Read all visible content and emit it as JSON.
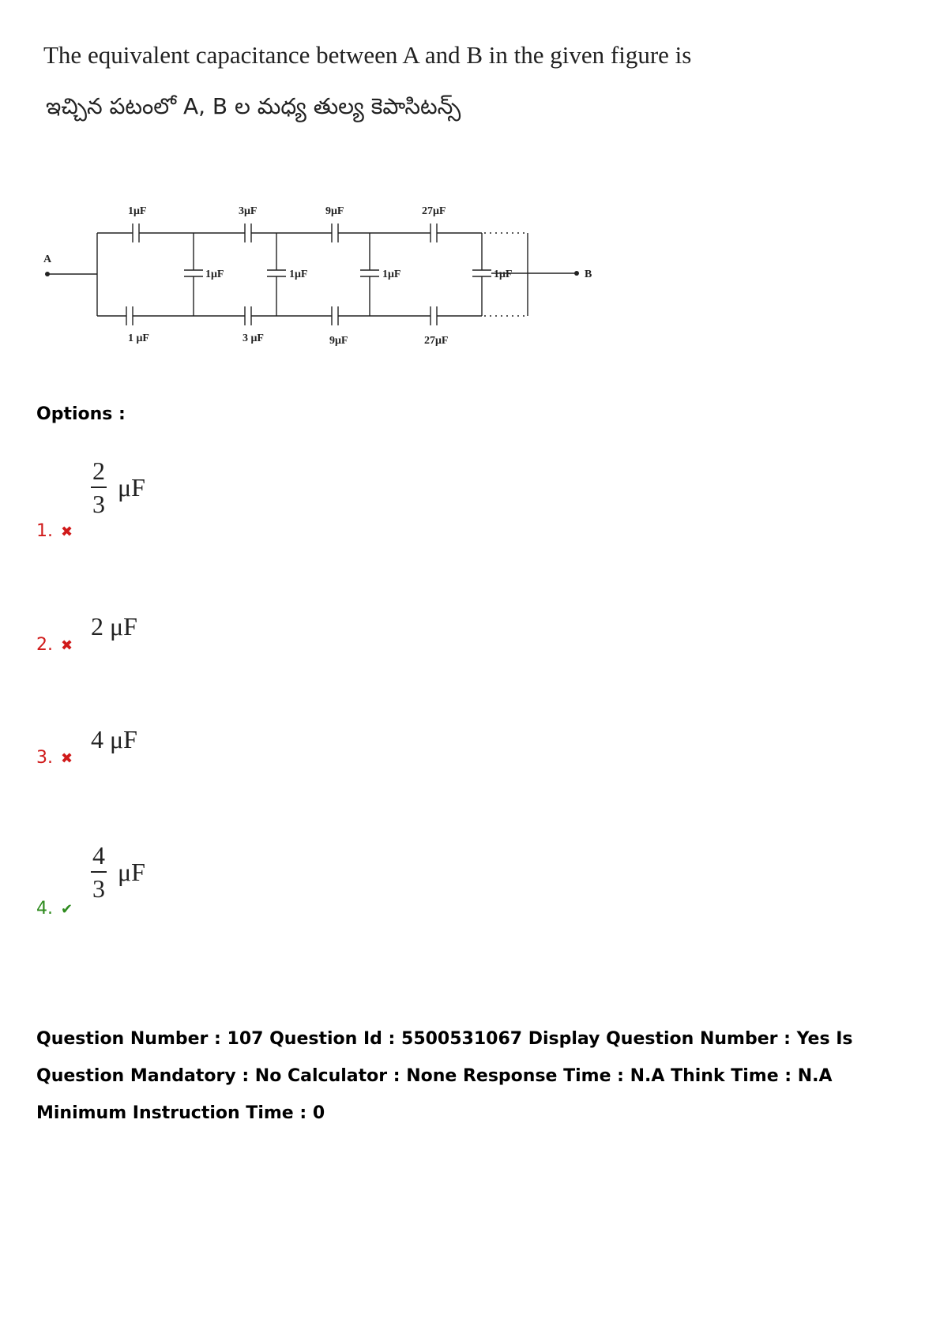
{
  "question": {
    "english": "The equivalent capacitance between A and B in the given figure is",
    "telugu": "ఇచ్చిన పటంలో A, B ల మధ్య తుల్య కెపాసిటన్స్"
  },
  "circuit": {
    "terminal_a": "A",
    "terminal_b": "B",
    "top_caps": [
      "1μF",
      "3μF",
      "9μF",
      "27μF"
    ],
    "vertical_caps": [
      "1μF",
      "1μF",
      "1μF",
      "1μF"
    ],
    "bottom_caps": [
      "1 μF",
      "3 μF",
      "9μF",
      "27μF"
    ]
  },
  "options_label": "Options :",
  "options": [
    {
      "number": "1.",
      "mark": "✖",
      "numerator": "2",
      "denominator": "3",
      "unit": "μF",
      "status": "wrong"
    },
    {
      "number": "2.",
      "mark": "✖",
      "value": "2 μF",
      "status": "wrong"
    },
    {
      "number": "3.",
      "mark": "✖",
      "value": "4 μF",
      "status": "wrong"
    },
    {
      "number": "4.",
      "mark": "✔",
      "numerator": "4",
      "denominator": "3",
      "unit": "μF",
      "status": "correct"
    }
  ],
  "footer": "Question Number : 107 Question Id : 5500531067 Display Question Number : Yes Is Question Mandatory : No Calculator : None Response Time : N.A Think Time : N.A Minimum Instruction Time : 0"
}
